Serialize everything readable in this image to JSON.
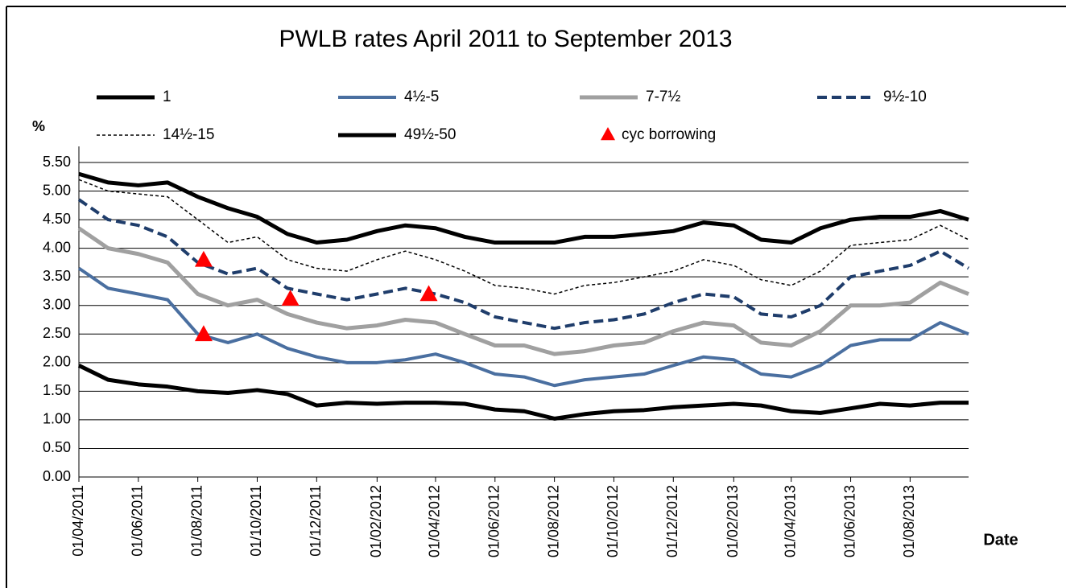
{
  "chart_data": {
    "type": "line",
    "title": "PWLB rates April 2011 to September 2013",
    "y_label": "%",
    "x_label": "Date",
    "x": [
      "01/04/2011",
      "01/05/2011",
      "01/06/2011",
      "01/07/2011",
      "01/08/2011",
      "01/09/2011",
      "01/10/2011",
      "01/11/2011",
      "01/12/2011",
      "01/01/2012",
      "01/02/2012",
      "01/03/2012",
      "01/04/2012",
      "01/05/2012",
      "01/06/2012",
      "01/07/2012",
      "01/08/2012",
      "01/09/2012",
      "01/10/2012",
      "01/11/2012",
      "01/12/2012",
      "01/01/2013",
      "01/02/2013",
      "01/03/2013",
      "01/04/2013",
      "01/05/2013",
      "01/06/2013",
      "01/07/2013",
      "01/08/2013",
      "01/09/2013",
      "30/09/2013"
    ],
    "series": [
      {
        "name": "1",
        "color": "#000000",
        "width": 5,
        "dash": "solid",
        "values": [
          1.95,
          1.7,
          1.62,
          1.58,
          1.5,
          1.47,
          1.52,
          1.45,
          1.25,
          1.3,
          1.28,
          1.3,
          1.3,
          1.28,
          1.18,
          1.15,
          1.02,
          1.1,
          1.15,
          1.17,
          1.22,
          1.25,
          1.28,
          1.25,
          1.15,
          1.12,
          1.2,
          1.28,
          1.25,
          1.3,
          1.3
        ]
      },
      {
        "name": "4½-5",
        "color": "#4a6fa0",
        "width": 4,
        "dash": "solid",
        "values": [
          3.65,
          3.3,
          3.2,
          3.1,
          2.5,
          2.35,
          2.5,
          2.25,
          2.1,
          2.0,
          2.0,
          2.05,
          2.15,
          2.0,
          1.8,
          1.75,
          1.6,
          1.7,
          1.75,
          1.8,
          1.95,
          2.1,
          2.05,
          1.8,
          1.75,
          1.95,
          2.3,
          2.4,
          2.4,
          2.7,
          2.5
        ]
      },
      {
        "name": "7-7½",
        "color": "#a0a0a0",
        "width": 5,
        "dash": "solid",
        "values": [
          4.35,
          4.0,
          3.9,
          3.75,
          3.2,
          3.0,
          3.1,
          2.85,
          2.7,
          2.6,
          2.65,
          2.75,
          2.7,
          2.5,
          2.3,
          2.3,
          2.15,
          2.2,
          2.3,
          2.35,
          2.55,
          2.7,
          2.65,
          2.35,
          2.3,
          2.55,
          3.0,
          3.0,
          3.05,
          3.4,
          3.2
        ]
      },
      {
        "name": "9½-10",
        "color": "#1f3d6b",
        "width": 4,
        "dash": "dashed",
        "values": [
          4.85,
          4.5,
          4.4,
          4.2,
          3.75,
          3.55,
          3.65,
          3.3,
          3.2,
          3.1,
          3.2,
          3.3,
          3.2,
          3.05,
          2.8,
          2.7,
          2.6,
          2.7,
          2.75,
          2.85,
          3.05,
          3.2,
          3.15,
          2.85,
          2.8,
          3.0,
          3.5,
          3.6,
          3.7,
          3.95,
          3.65
        ]
      },
      {
        "name": "14½-15",
        "color": "#000000",
        "width": 1.5,
        "dash": "dotted",
        "values": [
          5.2,
          5.0,
          4.95,
          4.9,
          4.5,
          4.1,
          4.2,
          3.8,
          3.65,
          3.6,
          3.8,
          3.95,
          3.8,
          3.6,
          3.35,
          3.3,
          3.2,
          3.35,
          3.4,
          3.5,
          3.6,
          3.8,
          3.7,
          3.45,
          3.35,
          3.6,
          4.05,
          4.1,
          4.15,
          4.4,
          4.15
        ]
      },
      {
        "name": "49½-50",
        "color": "#000000",
        "width": 5,
        "dash": "solid",
        "values": [
          5.3,
          5.15,
          5.1,
          5.15,
          4.9,
          4.7,
          4.55,
          4.25,
          4.1,
          4.15,
          4.3,
          4.4,
          4.35,
          4.2,
          4.1,
          4.1,
          4.1,
          4.2,
          4.2,
          4.25,
          4.3,
          4.45,
          4.4,
          4.15,
          4.1,
          4.35,
          4.5,
          4.55,
          4.55,
          4.65,
          4.5
        ]
      }
    ],
    "markers": {
      "name": "cyc borrowing",
      "color": "#ff0000",
      "marker": "triangle",
      "x": [
        "07/08/2011",
        "07/08/2011",
        "04/11/2011",
        "25/03/2012"
      ],
      "y": [
        3.8,
        2.5,
        3.12,
        3.2
      ]
    },
    "xlim": [
      "01/04/2011",
      "30/09/2013"
    ],
    "xticks": [
      "01/04/2011",
      "01/06/2011",
      "01/08/2011",
      "01/10/2011",
      "01/12/2011",
      "01/02/2012",
      "01/04/2012",
      "01/06/2012",
      "01/08/2012",
      "01/10/2012",
      "01/12/2012",
      "01/02/2013",
      "01/04/2013",
      "01/06/2013",
      "01/08/2013"
    ],
    "ylim": [
      0,
      5.5
    ],
    "yticks": [
      {
        "value": 0,
        "label": "0.00"
      },
      {
        "value": 0.5,
        "label": "0.50"
      },
      {
        "value": 1,
        "label": "1.00"
      },
      {
        "value": 1.5,
        "label": "1.50"
      },
      {
        "value": 2,
        "label": "2.00"
      },
      {
        "value": 2.5,
        "label": "2.50"
      },
      {
        "value": 3,
        "label": "3.00"
      },
      {
        "value": 3.5,
        "label": "3.50"
      },
      {
        "value": 4,
        "label": "4.00"
      },
      {
        "value": 4.5,
        "label": "4.50"
      },
      {
        "value": 5,
        "label": "5.00"
      },
      {
        "value": 5.5,
        "label": "5.50"
      }
    ],
    "grid": true
  }
}
